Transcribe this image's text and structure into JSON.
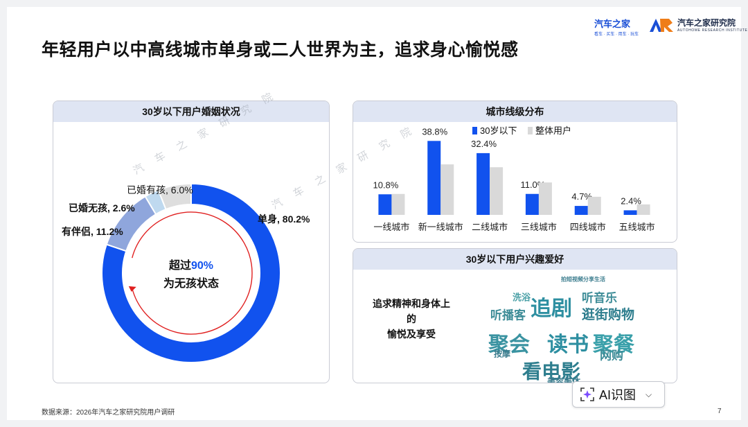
{
  "slide": {
    "title": "年轻用户以中高线城市单身或二人世界为主，追求身心愉悦感",
    "footer": "数据来源：2026年汽车之家研究院用户调研",
    "page_number": "7",
    "logos": [
      {
        "name": "汽车之家",
        "tagline": "看车 · 买车 · 用车 · 玩车"
      },
      {
        "name": "汽车之家研究院",
        "tagline": "AUTOHOME RESEARCH INSTITUTE"
      }
    ],
    "watermark": "汽车之家研究院"
  },
  "ai_button": {
    "label": "AI识图",
    "icon": "ai-scan-icon",
    "chevron": "chevron-down-icon"
  },
  "panels": {
    "marriage": {
      "header": "30岁以下用户婚姻状况"
    },
    "city": {
      "header": "城市线级分布"
    },
    "interest": {
      "header": "30岁以下用户兴趣爱好",
      "description_line1": "追求精神和身体上的",
      "description_line2": "愉悦及享受"
    }
  },
  "chart_data": [
    {
      "type": "pie",
      "title": "30岁以下用户婚姻状况",
      "variant": "donut",
      "slices": [
        {
          "label": "单身",
          "value": 80.2,
          "display": "单身, 80.2%",
          "color": "#1152ee"
        },
        {
          "label": "有伴侣",
          "value": 11.2,
          "display": "有伴侣, 11.2%",
          "color": "#8fa6dc"
        },
        {
          "label": "已婚无孩",
          "value": 2.6,
          "display": "已婚无孩, 2.6%",
          "color": "#bfd9ef"
        },
        {
          "label": "已婚有孩",
          "value": 6.0,
          "display": "已婚有孩, 6.0%",
          "color": "#dedede"
        }
      ],
      "center_text_prefix": "超过",
      "center_text_highlight": "90%",
      "center_text_line2": "为无孩状态",
      "highlight_color": "#1152ee"
    },
    {
      "type": "bar",
      "title": "城市线级分布",
      "categories": [
        "一线城市",
        "新一线城市",
        "二线城市",
        "三线城市",
        "四线城市",
        "五线城市"
      ],
      "series": [
        {
          "name": "30岁以下",
          "color": "#1152ee",
          "values": [
            10.8,
            38.8,
            32.4,
            11.0,
            4.7,
            2.4
          ],
          "labels": [
            "10.8%",
            "38.8%",
            "32.4%",
            "11.0%",
            "4.7%",
            "2.4%"
          ]
        },
        {
          "name": "整体用户",
          "color": "#d9d9d9",
          "values": [
            11.0,
            26.5,
            25.0,
            17.0,
            9.5,
            5.5
          ]
        }
      ],
      "ylim": [
        0,
        40
      ],
      "legend": "top-center"
    },
    {
      "type": "wordcloud",
      "title": "30岁以下用户兴趣爱好",
      "words": [
        {
          "text": "拍短视频分享生活",
          "weight": 1
        },
        {
          "text": "洗浴",
          "weight": 2
        },
        {
          "text": "追剧",
          "weight": 5
        },
        {
          "text": "听音乐",
          "weight": 3
        },
        {
          "text": "听播客",
          "weight": 3
        },
        {
          "text": "逛街购物",
          "weight": 3
        },
        {
          "text": "聚会",
          "weight": 5
        },
        {
          "text": "读书",
          "weight": 5
        },
        {
          "text": "聚餐",
          "weight": 5
        },
        {
          "text": "按摩",
          "weight": 1
        },
        {
          "text": "看电影",
          "weight": 5
        },
        {
          "text": "网购",
          "weight": 3
        },
        {
          "text": "美容美体",
          "weight": 1
        }
      ]
    }
  ]
}
